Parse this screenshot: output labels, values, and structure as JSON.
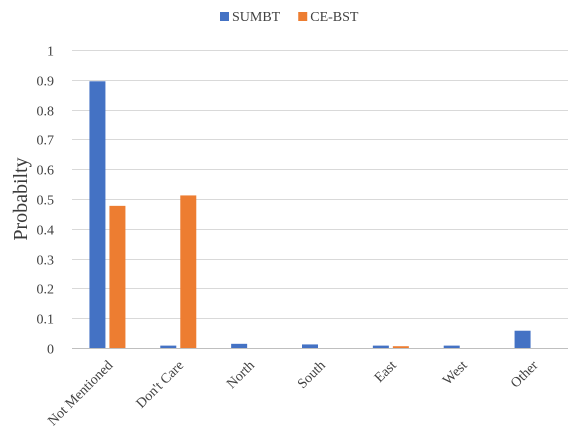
{
  "chart_data": {
    "type": "bar",
    "title": "",
    "xlabel": "",
    "ylabel": "Probabilty",
    "ylim": [
      0,
      1
    ],
    "yticks": [
      "0",
      "0.1",
      "0.2",
      "0.3",
      "0.4",
      "0.5",
      "0.6",
      "0.7",
      "0.8",
      "0.9",
      "1"
    ],
    "grid": true,
    "legend_position": "top",
    "categories": [
      "Not Mentioned",
      "Don't Care",
      "North",
      "South",
      "East",
      "West",
      "Other"
    ],
    "series": [
      {
        "name": "SUMBT",
        "color": "#4472c4",
        "values": [
          0.895,
          0.008,
          0.014,
          0.012,
          0.008,
          0.008,
          0.058
        ]
      },
      {
        "name": "CE-BST",
        "color": "#ed7d31",
        "values": [
          0.477,
          0.512,
          0.0,
          0.0,
          0.006,
          0.0,
          0.0
        ]
      }
    ]
  }
}
